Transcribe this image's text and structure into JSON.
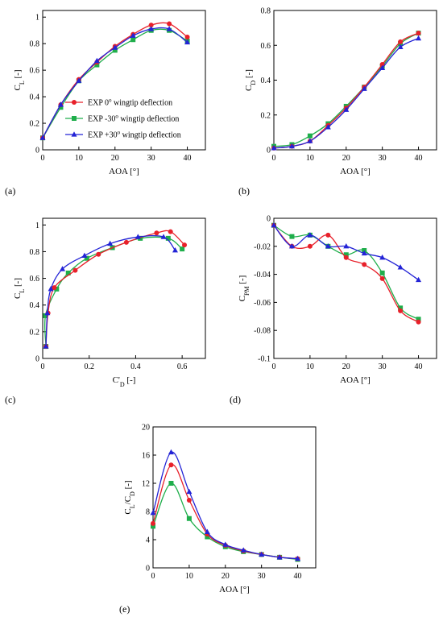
{
  "legend": {
    "entries": [
      {
        "label": "EXP 0",
        "suffix": " wingtip deflection",
        "color": "#e8202a",
        "marker": "circle"
      },
      {
        "label": "EXP -30",
        "suffix": " wingtip deflection",
        "color": "#1fae4b",
        "marker": "square"
      },
      {
        "label": "EXP +30",
        "suffix": " wingtip deflection",
        "color": "#2323d6",
        "marker": "triangle"
      }
    ]
  },
  "chart_data": [
    {
      "id": "a",
      "type": "line",
      "panel_label": "(a)",
      "xlabel": "AOA [°]",
      "ylabel": {
        "main": "C",
        "sub": "L",
        "unit": " [-]"
      },
      "xlim": [
        0,
        45
      ],
      "ylim": [
        0,
        1.05
      ],
      "xticks": [
        0,
        10,
        20,
        30,
        40
      ],
      "xtick_labels": [
        "0",
        "10",
        "20",
        "30",
        "40"
      ],
      "yticks": [
        0,
        0.2,
        0.4,
        0.6,
        0.8,
        1
      ],
      "ytick_labels": [
        "0",
        "0.2",
        "0.4",
        "0.6",
        "0.8",
        "1"
      ],
      "series": [
        {
          "name": "EXP 0° wingtip deflection",
          "color": "#e8202a",
          "marker": "circle",
          "points": [
            [
              0,
              0.09
            ],
            [
              5,
              0.34
            ],
            [
              10,
              0.53
            ],
            [
              15,
              0.66
            ],
            [
              20,
              0.78
            ],
            [
              25,
              0.87
            ],
            [
              30,
              0.94
            ],
            [
              35,
              0.95
            ],
            [
              40,
              0.85
            ]
          ]
        },
        {
          "name": "EXP -30° wingtip deflection",
          "color": "#1fae4b",
          "marker": "square",
          "points": [
            [
              0,
              0.09
            ],
            [
              5,
              0.32
            ],
            [
              10,
              0.52
            ],
            [
              15,
              0.64
            ],
            [
              20,
              0.75
            ],
            [
              25,
              0.83
            ],
            [
              30,
              0.9
            ],
            [
              35,
              0.9
            ],
            [
              40,
              0.82
            ]
          ]
        },
        {
          "name": "EXP +30° wingtip deflection",
          "color": "#2323d6",
          "marker": "triangle",
          "points": [
            [
              0,
              0.09
            ],
            [
              5,
              0.34
            ],
            [
              10,
              0.52
            ],
            [
              15,
              0.67
            ],
            [
              20,
              0.77
            ],
            [
              25,
              0.86
            ],
            [
              30,
              0.91
            ],
            [
              35,
              0.91
            ],
            [
              40,
              0.81
            ]
          ]
        }
      ]
    },
    {
      "id": "b",
      "type": "line",
      "panel_label": "(b)",
      "xlabel": "AOA [°]",
      "ylabel": {
        "main": "C",
        "sub": "D",
        "unit": " [-]"
      },
      "xlim": [
        0,
        45
      ],
      "ylim": [
        0,
        0.8
      ],
      "xticks": [
        0,
        10,
        20,
        30,
        40
      ],
      "xtick_labels": [
        "0",
        "10",
        "20",
        "30",
        "40"
      ],
      "yticks": [
        0,
        0.2,
        0.4,
        0.6,
        0.8
      ],
      "ytick_labels": [
        "0",
        "0.2",
        "0.4",
        "0.6",
        "0.8"
      ],
      "series": [
        {
          "name": "EXP 0° wingtip deflection",
          "color": "#e8202a",
          "marker": "circle",
          "points": [
            [
              0,
              0.01
            ],
            [
              5,
              0.02
            ],
            [
              10,
              0.05
            ],
            [
              15,
              0.14
            ],
            [
              20,
              0.24
            ],
            [
              25,
              0.36
            ],
            [
              30,
              0.49
            ],
            [
              35,
              0.62
            ],
            [
              40,
              0.67
            ]
          ]
        },
        {
          "name": "EXP -30° wingtip deflection",
          "color": "#1fae4b",
          "marker": "square",
          "points": [
            [
              0,
              0.02
            ],
            [
              5,
              0.03
            ],
            [
              10,
              0.08
            ],
            [
              15,
              0.15
            ],
            [
              20,
              0.25
            ],
            [
              25,
              0.36
            ],
            [
              30,
              0.48
            ],
            [
              35,
              0.61
            ],
            [
              40,
              0.67
            ]
          ]
        },
        {
          "name": "EXP +30° wingtip deflection",
          "color": "#2323d6",
          "marker": "triangle",
          "points": [
            [
              0,
              0.01
            ],
            [
              5,
              0.02
            ],
            [
              10,
              0.05
            ],
            [
              15,
              0.13
            ],
            [
              20,
              0.23
            ],
            [
              25,
              0.35
            ],
            [
              30,
              0.47
            ],
            [
              35,
              0.59
            ],
            [
              40,
              0.64
            ]
          ]
        }
      ]
    },
    {
      "id": "c",
      "type": "line",
      "panel_label": "(c)",
      "xlabel": "C'D [-]",
      "ylabel": {
        "main": "C",
        "sub": "L",
        "unit": " [-]"
      },
      "xlim": [
        0,
        0.7
      ],
      "ylim": [
        0,
        1.05
      ],
      "xticks": [
        0,
        0.2,
        0.4,
        0.6
      ],
      "xtick_labels": [
        "0",
        "0.2",
        "0.4",
        "0.6"
      ],
      "yticks": [
        0,
        0.2,
        0.4,
        0.6,
        0.8,
        1
      ],
      "ytick_labels": [
        "0",
        "0.2",
        "0.4",
        "0.6",
        "0.8",
        "1"
      ],
      "series": [
        {
          "name": "EXP 0° wingtip deflection",
          "color": "#e8202a",
          "marker": "circle",
          "points": [
            [
              0.014,
              0.09
            ],
            [
              0.023,
              0.34
            ],
            [
              0.05,
              0.53
            ],
            [
              0.14,
              0.66
            ],
            [
              0.24,
              0.78
            ],
            [
              0.36,
              0.87
            ],
            [
              0.49,
              0.94
            ],
            [
              0.55,
              0.95
            ],
            [
              0.61,
              0.85
            ]
          ]
        },
        {
          "name": "EXP -30° wingtip deflection",
          "color": "#1fae4b",
          "marker": "square",
          "points": [
            [
              0.014,
              0.09
            ],
            [
              0.012,
              0.32
            ],
            [
              0.06,
              0.52
            ],
            [
              0.11,
              0.64
            ],
            [
              0.19,
              0.75
            ],
            [
              0.3,
              0.83
            ],
            [
              0.42,
              0.9
            ],
            [
              0.54,
              0.9
            ],
            [
              0.6,
              0.82
            ]
          ]
        },
        {
          "name": "EXP +30° wingtip deflection",
          "color": "#2323d6",
          "marker": "triangle",
          "points": [
            [
              0.014,
              0.09
            ],
            [
              0.02,
              0.34
            ],
            [
              0.035,
              0.52
            ],
            [
              0.085,
              0.67
            ],
            [
              0.18,
              0.77
            ],
            [
              0.29,
              0.86
            ],
            [
              0.41,
              0.91
            ],
            [
              0.52,
              0.91
            ],
            [
              0.57,
              0.81
            ]
          ]
        }
      ]
    },
    {
      "id": "d",
      "type": "line",
      "panel_label": "(d)",
      "xlabel": "AOA [°]",
      "ylabel": {
        "main": "C",
        "sub": "PM",
        "unit": " [-]"
      },
      "xlim": [
        0,
        45
      ],
      "ylim": [
        -0.1,
        0
      ],
      "xticks": [
        0,
        10,
        20,
        30,
        40
      ],
      "xtick_labels": [
        "0",
        "10",
        "20",
        "30",
        "40"
      ],
      "yticks": [
        0,
        -0.02,
        -0.04,
        -0.06,
        -0.08,
        -0.1
      ],
      "ytick_labels": [
        "0",
        "-0.02",
        "-0.04",
        "-0.06",
        "-0.08",
        "-0.1"
      ],
      "series": [
        {
          "name": "EXP 0° wingtip deflection",
          "color": "#e8202a",
          "marker": "circle",
          "points": [
            [
              0,
              -0.005
            ],
            [
              5,
              -0.02
            ],
            [
              10,
              -0.02
            ],
            [
              15,
              -0.012
            ],
            [
              20,
              -0.028
            ],
            [
              25,
              -0.033
            ],
            [
              30,
              -0.043
            ],
            [
              35,
              -0.066
            ],
            [
              40,
              -0.074
            ]
          ]
        },
        {
          "name": "EXP -30° wingtip deflection",
          "color": "#1fae4b",
          "marker": "square",
          "points": [
            [
              0,
              -0.005
            ],
            [
              5,
              -0.013
            ],
            [
              10,
              -0.012
            ],
            [
              15,
              -0.02
            ],
            [
              20,
              -0.026
            ],
            [
              25,
              -0.023
            ],
            [
              30,
              -0.039
            ],
            [
              35,
              -0.064
            ],
            [
              40,
              -0.072
            ]
          ]
        },
        {
          "name": "EXP +30° wingtip deflection",
          "color": "#2323d6",
          "marker": "triangle",
          "points": [
            [
              0,
              -0.005
            ],
            [
              5,
              -0.02
            ],
            [
              10,
              -0.012
            ],
            [
              15,
              -0.02
            ],
            [
              20,
              -0.02
            ],
            [
              25,
              -0.025
            ],
            [
              30,
              -0.028
            ],
            [
              35,
              -0.035
            ],
            [
              40,
              -0.044
            ]
          ]
        }
      ]
    },
    {
      "id": "e",
      "type": "line",
      "panel_label": "(e)",
      "xlabel": "AOA [°]",
      "ylabel": {
        "main": "C",
        "sub": "L",
        "mid": "/C",
        "sub2": "D",
        "unit": " [-]"
      },
      "xlim": [
        0,
        45
      ],
      "ylim": [
        0,
        20
      ],
      "xticks": [
        0,
        10,
        20,
        30,
        40
      ],
      "xtick_labels": [
        "0",
        "10",
        "20",
        "30",
        "40"
      ],
      "yticks": [
        0,
        4,
        8,
        12,
        16,
        20
      ],
      "ytick_labels": [
        "0",
        "4",
        "8",
        "12",
        "16",
        "20"
      ],
      "series": [
        {
          "name": "EXP 0° wingtip deflection",
          "color": "#e8202a",
          "marker": "circle",
          "points": [
            [
              0,
              6.3
            ],
            [
              5,
              14.6
            ],
            [
              10,
              9.6
            ],
            [
              15,
              4.8
            ],
            [
              20,
              3.2
            ],
            [
              25,
              2.4
            ],
            [
              30,
              1.9
            ],
            [
              35,
              1.5
            ],
            [
              40,
              1.3
            ]
          ]
        },
        {
          "name": "EXP -30° wingtip deflection",
          "color": "#1fae4b",
          "marker": "square",
          "points": [
            [
              0,
              5.9
            ],
            [
              5,
              12.0
            ],
            [
              10,
              7.0
            ],
            [
              15,
              4.4
            ],
            [
              20,
              3.0
            ],
            [
              25,
              2.3
            ],
            [
              30,
              1.9
            ],
            [
              35,
              1.5
            ],
            [
              40,
              1.2
            ]
          ]
        },
        {
          "name": "EXP +30° wingtip deflection",
          "color": "#2323d6",
          "marker": "triangle",
          "points": [
            [
              0,
              7.8
            ],
            [
              5,
              16.4
            ],
            [
              10,
              10.8
            ],
            [
              15,
              5.1
            ],
            [
              20,
              3.3
            ],
            [
              25,
              2.5
            ],
            [
              30,
              1.9
            ],
            [
              35,
              1.5
            ],
            [
              40,
              1.3
            ]
          ]
        }
      ]
    }
  ]
}
